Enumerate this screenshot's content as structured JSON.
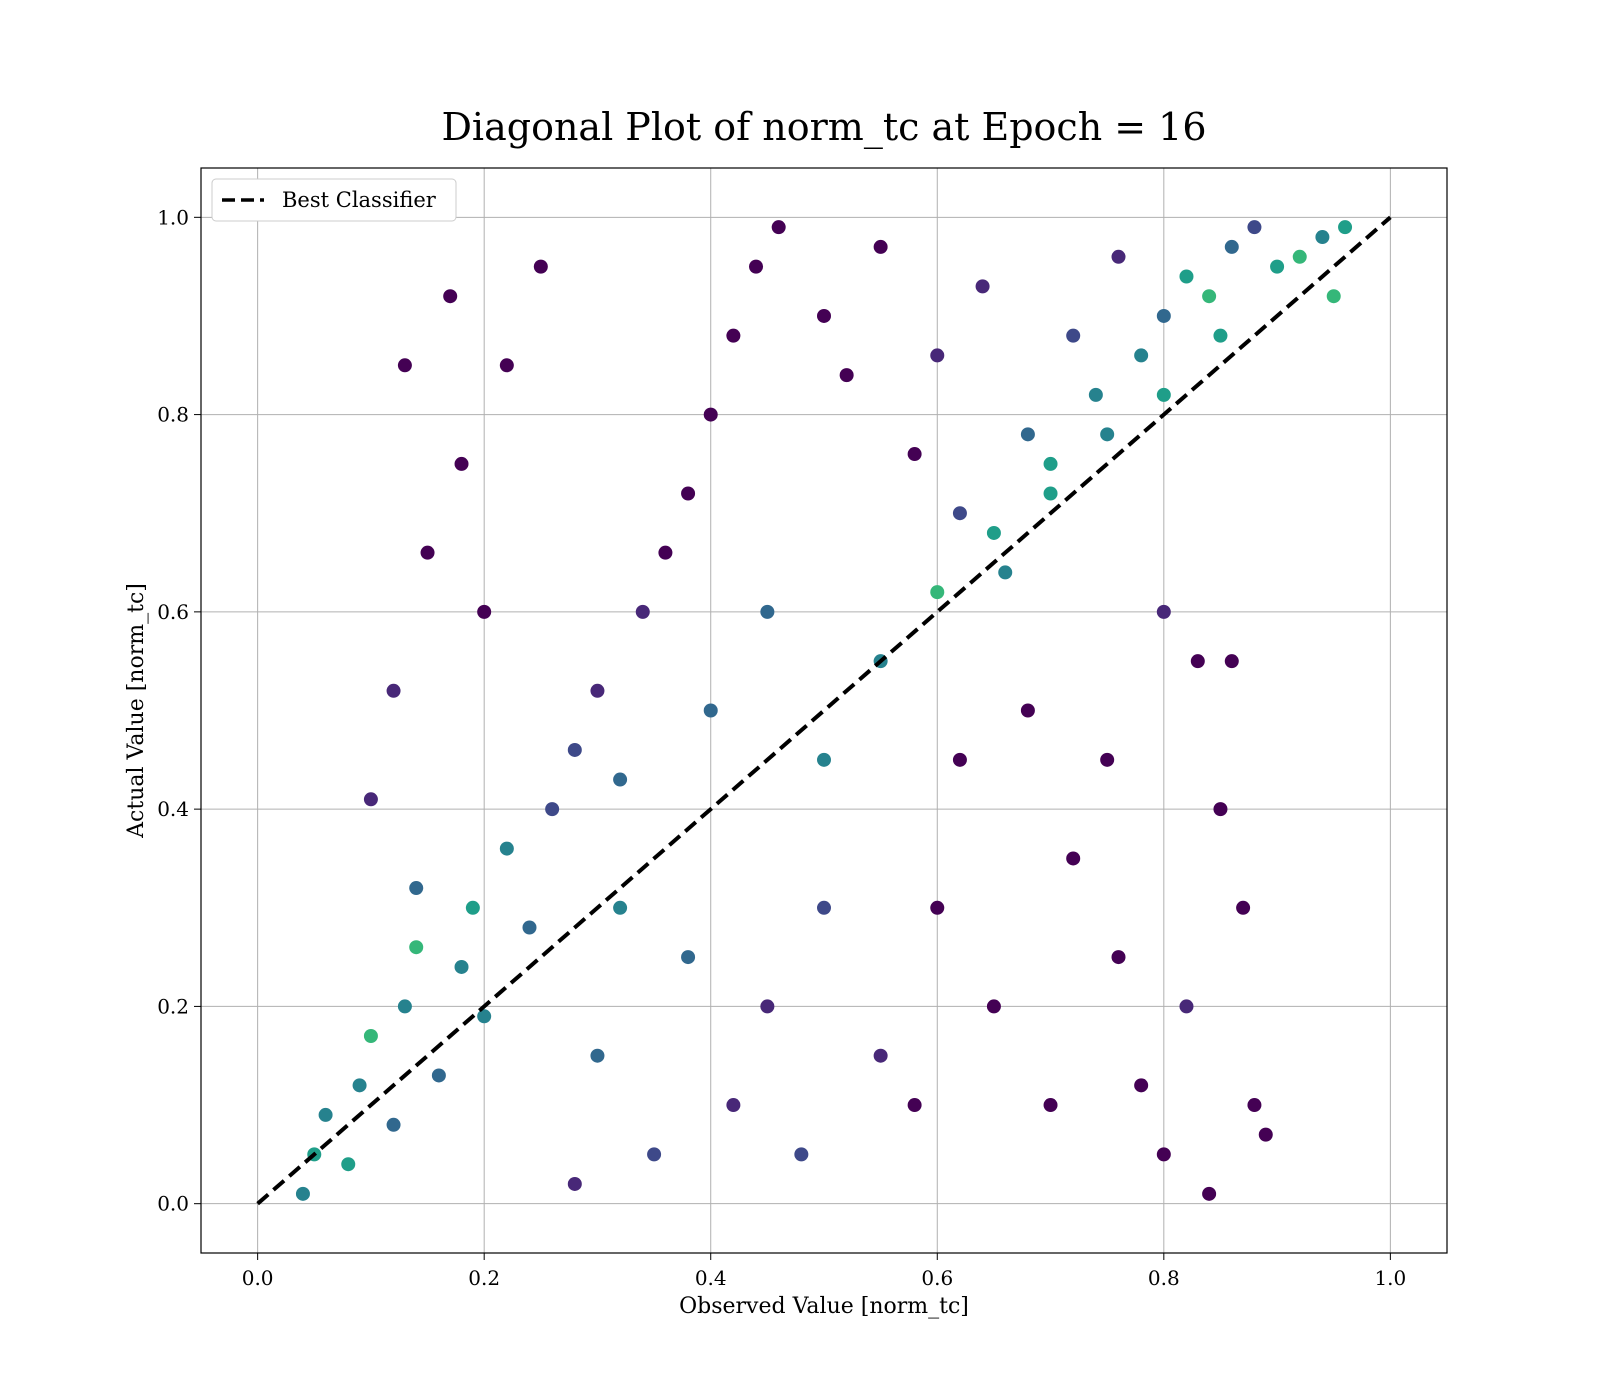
{
  "chart_data": {
    "type": "scatter",
    "title": "Diagonal Plot of norm_tc at Epoch = 16",
    "xlabel": "Observed Value [norm_tc]",
    "ylabel": "Actual Value [norm_tc]",
    "xlim": [
      -0.05,
      1.05
    ],
    "ylim": [
      -0.05,
      1.05
    ],
    "xticks": [
      "0.0",
      "0.2",
      "0.4",
      "0.6",
      "0.8",
      "1.0"
    ],
    "yticks": [
      "0.0",
      "0.2",
      "0.4",
      "0.6",
      "0.8",
      "1.0"
    ],
    "grid": true,
    "legend": {
      "placement": "top-left",
      "entries": [
        "Best Classifier"
      ]
    },
    "reference_line": {
      "name": "Best Classifier",
      "x": [
        0.0,
        1.0
      ],
      "y": [
        0.0,
        1.0
      ],
      "style": "dashed",
      "color": "#000000"
    },
    "colormap": [
      "#440154",
      "#482878",
      "#3e4989",
      "#31688e",
      "#26828e",
      "#1f9e89",
      "#35b779",
      "#6ece58",
      "#b5de2b",
      "#fde725"
    ],
    "series": [
      {
        "points": [
          [
            0.04,
            0.01
          ],
          [
            0.05,
            0.05
          ],
          [
            0.06,
            0.09
          ],
          [
            0.08,
            0.04
          ],
          [
            0.09,
            0.12
          ],
          [
            0.1,
            0.17
          ],
          [
            0.12,
            0.08
          ],
          [
            0.13,
            0.2
          ],
          [
            0.14,
            0.26
          ],
          [
            0.16,
            0.13
          ],
          [
            0.18,
            0.24
          ],
          [
            0.19,
            0.3
          ],
          [
            0.2,
            0.19
          ],
          [
            0.22,
            0.36
          ],
          [
            0.24,
            0.28
          ],
          [
            0.26,
            0.4
          ],
          [
            0.28,
            0.46
          ],
          [
            0.3,
            0.52
          ],
          [
            0.32,
            0.43
          ],
          [
            0.34,
            0.6
          ],
          [
            0.36,
            0.66
          ],
          [
            0.38,
            0.72
          ],
          [
            0.4,
            0.8
          ],
          [
            0.42,
            0.88
          ],
          [
            0.44,
            0.95
          ],
          [
            0.46,
            0.99
          ],
          [
            0.5,
            0.9
          ],
          [
            0.52,
            0.84
          ],
          [
            0.55,
            0.97
          ],
          [
            0.58,
            0.76
          ],
          [
            0.6,
            0.86
          ],
          [
            0.62,
            0.7
          ],
          [
            0.64,
            0.93
          ],
          [
            0.66,
            0.64
          ],
          [
            0.68,
            0.78
          ],
          [
            0.7,
            0.72
          ],
          [
            0.72,
            0.88
          ],
          [
            0.74,
            0.82
          ],
          [
            0.76,
            0.96
          ],
          [
            0.78,
            0.86
          ],
          [
            0.8,
            0.9
          ],
          [
            0.82,
            0.94
          ],
          [
            0.84,
            0.92
          ],
          [
            0.86,
            0.97
          ],
          [
            0.88,
            0.99
          ],
          [
            0.9,
            0.95
          ],
          [
            0.92,
            0.96
          ],
          [
            0.94,
            0.98
          ],
          [
            0.96,
            0.99
          ],
          [
            0.95,
            0.92
          ],
          [
            0.2,
            0.6
          ],
          [
            0.18,
            0.75
          ],
          [
            0.22,
            0.85
          ],
          [
            0.25,
            0.95
          ],
          [
            0.15,
            0.66
          ],
          [
            0.13,
            0.85
          ],
          [
            0.17,
            0.92
          ],
          [
            0.12,
            0.52
          ],
          [
            0.1,
            0.41
          ],
          [
            0.14,
            0.32
          ],
          [
            0.6,
            0.3
          ],
          [
            0.65,
            0.2
          ],
          [
            0.7,
            0.1
          ],
          [
            0.72,
            0.35
          ],
          [
            0.75,
            0.45
          ],
          [
            0.78,
            0.12
          ],
          [
            0.8,
            0.05
          ],
          [
            0.82,
            0.2
          ],
          [
            0.85,
            0.4
          ],
          [
            0.88,
            0.1
          ],
          [
            0.86,
            0.55
          ],
          [
            0.83,
            0.55
          ],
          [
            0.8,
            0.6
          ],
          [
            0.87,
            0.3
          ],
          [
            0.89,
            0.07
          ],
          [
            0.84,
            0.01
          ],
          [
            0.76,
            0.25
          ],
          [
            0.68,
            0.5
          ],
          [
            0.62,
            0.45
          ],
          [
            0.58,
            0.1
          ],
          [
            0.45,
            0.2
          ],
          [
            0.5,
            0.3
          ],
          [
            0.55,
            0.15
          ],
          [
            0.48,
            0.05
          ],
          [
            0.42,
            0.1
          ],
          [
            0.38,
            0.25
          ],
          [
            0.35,
            0.05
          ],
          [
            0.3,
            0.15
          ],
          [
            0.28,
            0.02
          ],
          [
            0.32,
            0.3
          ],
          [
            0.4,
            0.5
          ],
          [
            0.45,
            0.6
          ],
          [
            0.5,
            0.45
          ],
          [
            0.55,
            0.55
          ],
          [
            0.6,
            0.62
          ],
          [
            0.65,
            0.68
          ],
          [
            0.7,
            0.75
          ],
          [
            0.75,
            0.78
          ],
          [
            0.8,
            0.82
          ],
          [
            0.85,
            0.88
          ]
        ],
        "color_levels": [
          4,
          5,
          4,
          5,
          4,
          6,
          3,
          4,
          6,
          3,
          4,
          5,
          4,
          4,
          3,
          2,
          2,
          1,
          3,
          1,
          0,
          0,
          0,
          0,
          0,
          0,
          0,
          0,
          0,
          0,
          1,
          2,
          1,
          4,
          3,
          5,
          2,
          4,
          1,
          4,
          3,
          5,
          6,
          3,
          2,
          5,
          6,
          4,
          5,
          6,
          0,
          0,
          0,
          0,
          0,
          0,
          0,
          1,
          1,
          3,
          0,
          0,
          0,
          0,
          0,
          0,
          0,
          1,
          0,
          0,
          0,
          0,
          1,
          0,
          0,
          0,
          0,
          0,
          0,
          0,
          1,
          2,
          1,
          2,
          1,
          3,
          2,
          3,
          1,
          4,
          3,
          3,
          4,
          4,
          6,
          5,
          5,
          4,
          5,
          5
        ]
      }
    ]
  }
}
